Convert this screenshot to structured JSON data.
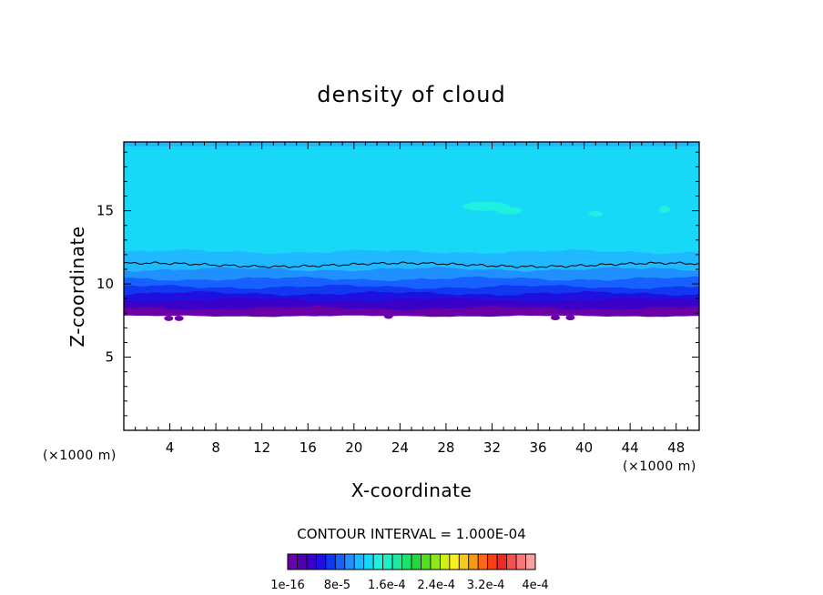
{
  "chart_data": {
    "type": "heatmap",
    "title": "density of cloud",
    "xlabel": "X-coordinate",
    "ylabel": "Z-coordinate",
    "x_unit_left": "(×1000 m)",
    "x_unit_right": "(×1000 m)",
    "xlim": [
      0,
      50
    ],
    "ylim": [
      0,
      19.7
    ],
    "x_ticks": [
      4,
      8,
      12,
      16,
      20,
      24,
      28,
      32,
      36,
      40,
      44,
      48
    ],
    "y_ticks": [
      5,
      10,
      15
    ],
    "contour_interval_text": "CONTOUR INTERVAL = 1.000E-04",
    "colorbar": {
      "labels": [
        "1e-16",
        "8e-5",
        "1.6e-4",
        "2.4e-4",
        "3.2e-4",
        "4e-4"
      ],
      "colors": [
        "#6a00a8",
        "#5000b0",
        "#3a00c8",
        "#2010e0",
        "#1038f0",
        "#1860ff",
        "#2090ff",
        "#20b8ff",
        "#18d8f8",
        "#20f0e0",
        "#20f0c0",
        "#20e8a0",
        "#20e070",
        "#20d840",
        "#50e020",
        "#90e818",
        "#d0f018",
        "#f8f020",
        "#f8c820",
        "#f89818",
        "#f86818",
        "#f84018",
        "#f02828",
        "#f85050",
        "#f87878",
        "#f8a0a0"
      ]
    },
    "cloud_layers": [
      {
        "z_bottom": 7.8,
        "color": "#6a00a8"
      },
      {
        "z_bottom": 8.35,
        "color": "#3a00c8"
      },
      {
        "z_bottom": 8.9,
        "color": "#2010e0"
      },
      {
        "z_bottom": 9.35,
        "color": "#1038f0"
      },
      {
        "z_bottom": 9.8,
        "color": "#1860ff"
      },
      {
        "z_bottom": 10.35,
        "color": "#2090ff"
      },
      {
        "z_bottom": 11.0,
        "color": "#20b8ff"
      },
      {
        "z_bottom": 12.2,
        "color": "#18d8f8"
      }
    ],
    "cloud_top": 19.7,
    "contour_line_z": 11.3,
    "top_band": {
      "z_bottom": 19.4,
      "color": "#20b8ff"
    },
    "patch_color": "#20f0e0",
    "line_color": "#000000"
  }
}
